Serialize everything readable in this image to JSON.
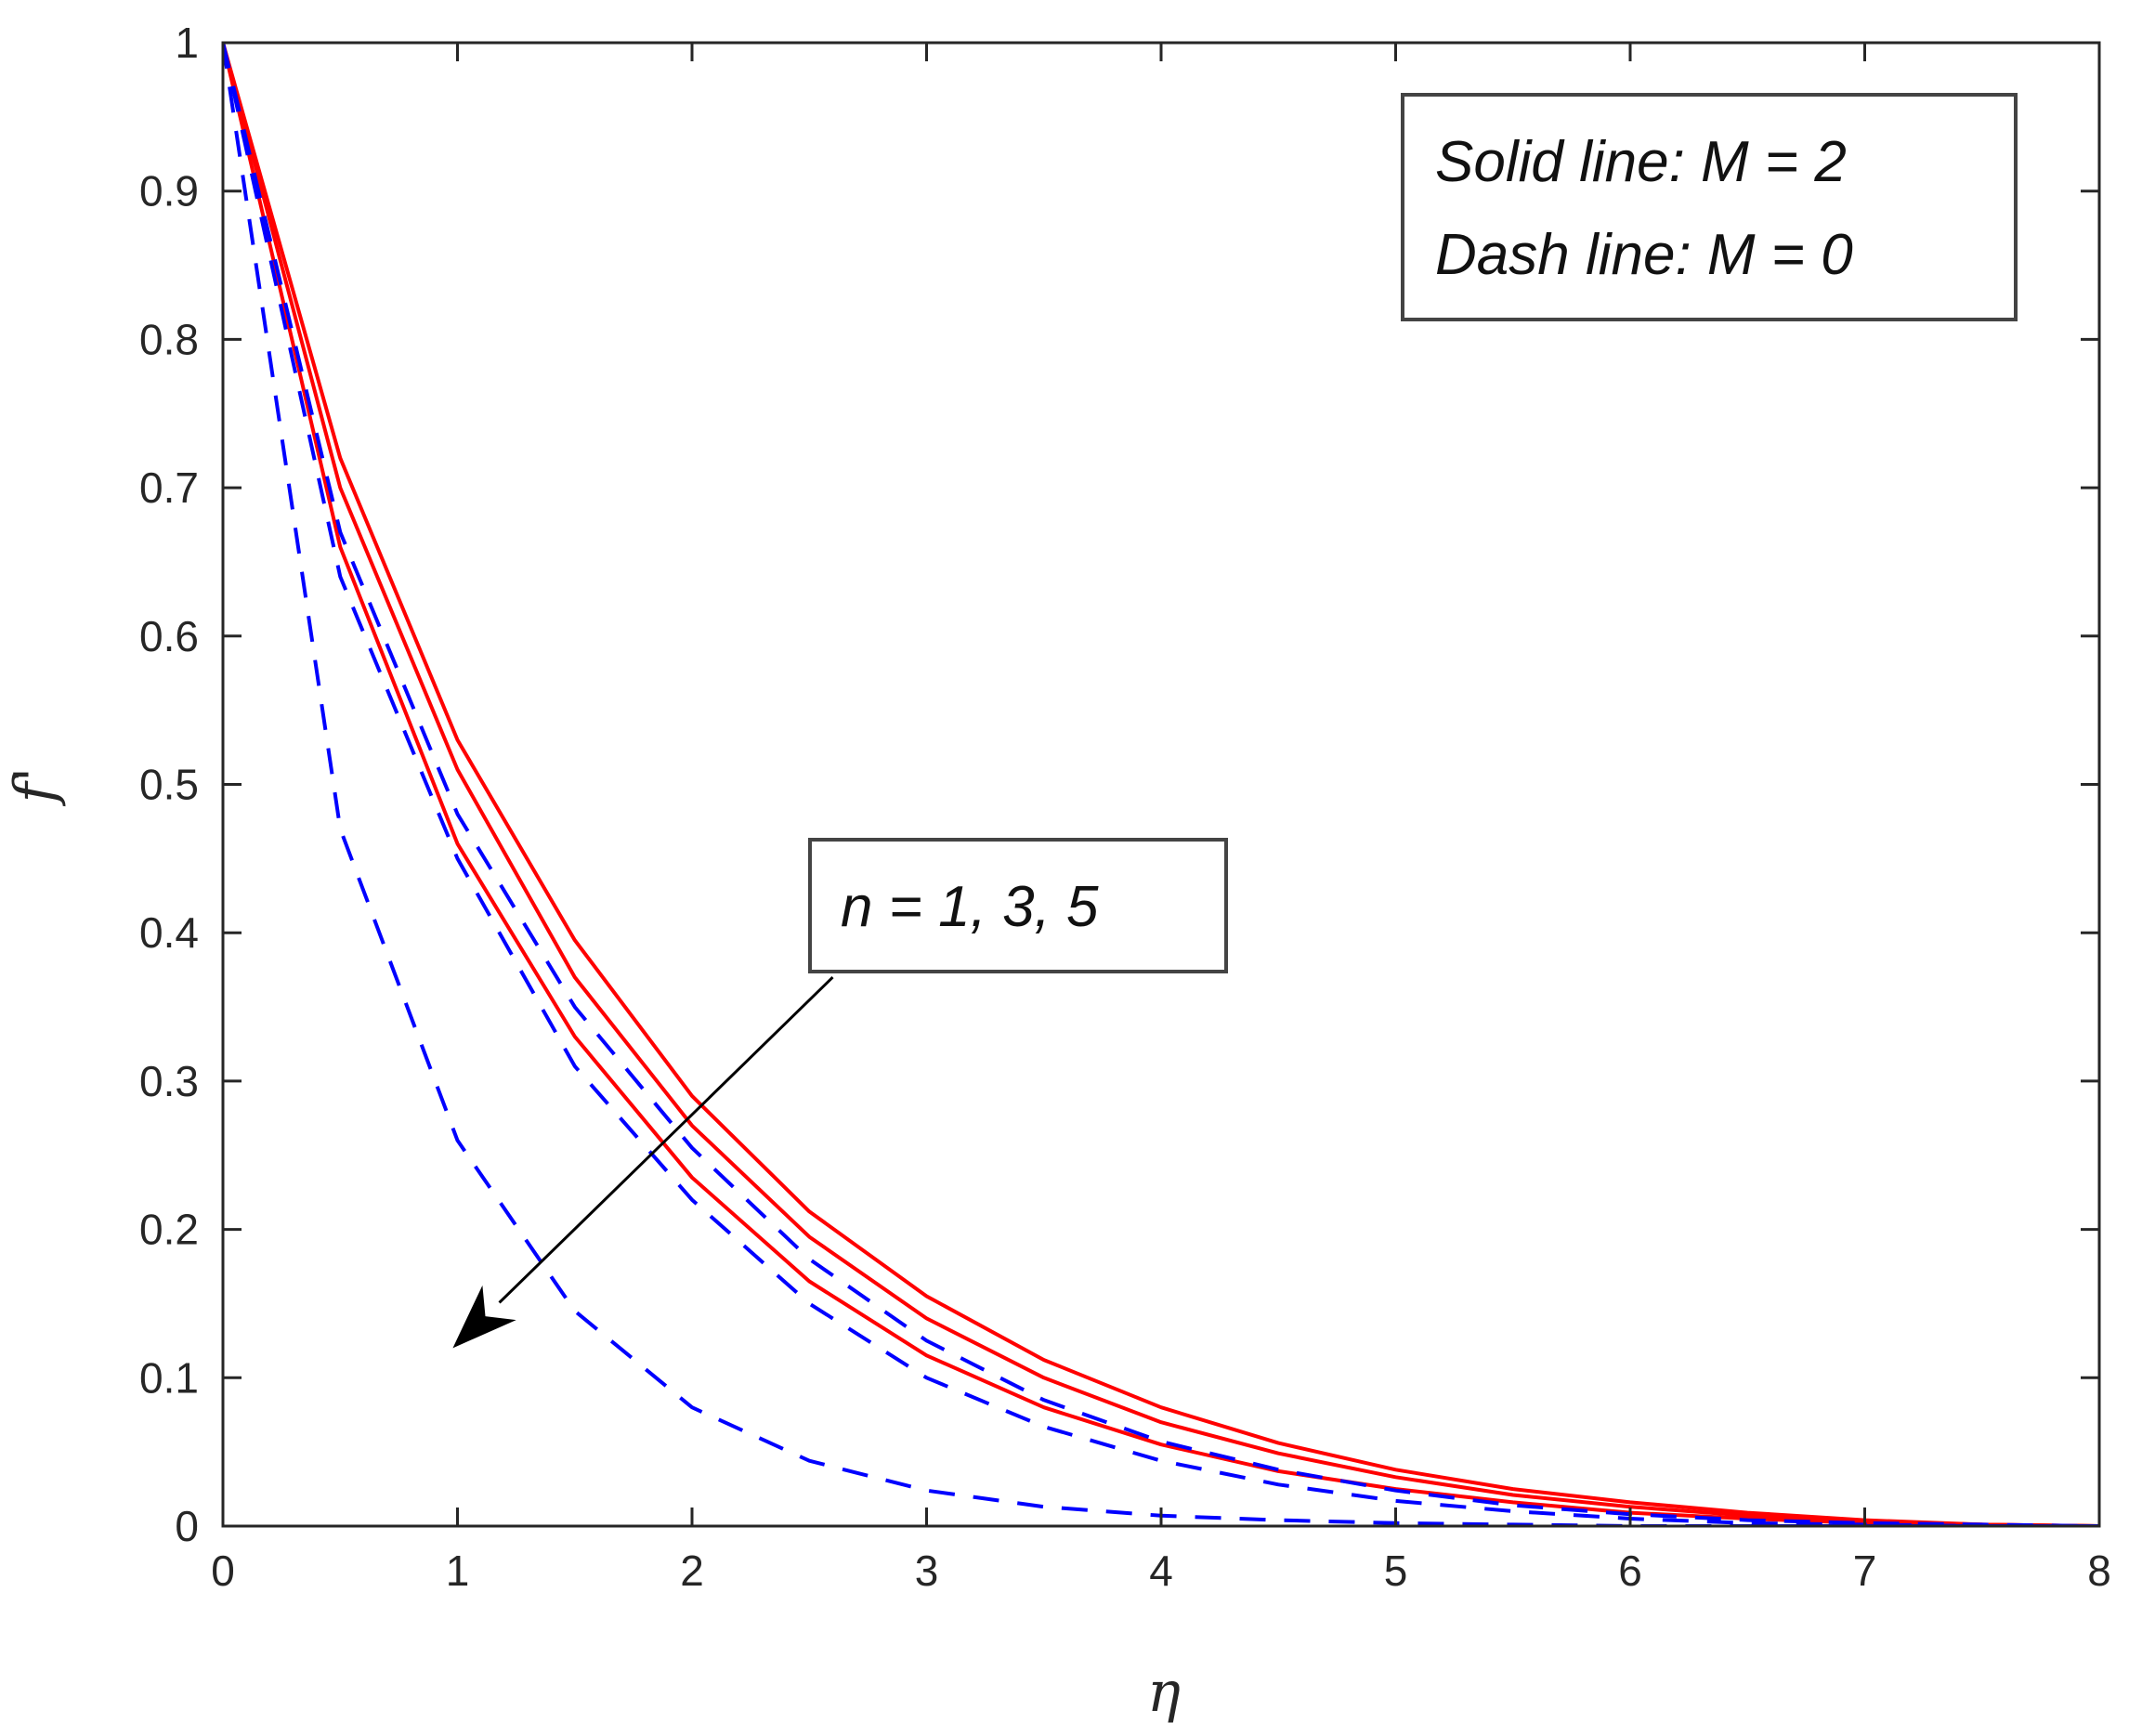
{
  "chart_data": {
    "type": "line",
    "title": "",
    "xlabel": "η",
    "ylabel": "f'",
    "xlim": [
      0,
      8
    ],
    "ylim": [
      0,
      1
    ],
    "xticks": [
      0,
      1,
      2,
      3,
      4,
      5,
      6,
      7,
      8
    ],
    "yticks": [
      0,
      0.1,
      0.2,
      0.3,
      0.4,
      0.5,
      0.6,
      0.7,
      0.8,
      0.9,
      1
    ],
    "grid": false,
    "x": [
      0,
      0.5,
      1,
      1.5,
      2,
      2.5,
      3,
      3.5,
      4,
      4.5,
      5,
      5.5,
      6,
      6.5,
      7,
      7.5,
      8
    ],
    "series": [
      {
        "style": "solid",
        "color": "#ff0000",
        "values": [
          1,
          0.72,
          0.53,
          0.395,
          0.29,
          0.212,
          0.155,
          0.112,
          0.08,
          0.056,
          0.038,
          0.025,
          0.016,
          0.009,
          0.004,
          0.001,
          0.0
        ]
      },
      {
        "style": "solid",
        "color": "#ff0000",
        "values": [
          1,
          0.7,
          0.51,
          0.37,
          0.27,
          0.195,
          0.14,
          0.1,
          0.07,
          0.049,
          0.033,
          0.021,
          0.013,
          0.007,
          0.003,
          0.001,
          0.0
        ]
      },
      {
        "style": "solid",
        "color": "#ff0000",
        "values": [
          1,
          0.66,
          0.46,
          0.33,
          0.235,
          0.165,
          0.115,
          0.08,
          0.055,
          0.037,
          0.025,
          0.016,
          0.009,
          0.005,
          0.002,
          0.001,
          0.0
        ]
      },
      {
        "style": "dashed",
        "color": "#0000ff",
        "values": [
          1,
          0.67,
          0.48,
          0.35,
          0.255,
          0.18,
          0.125,
          0.085,
          0.057,
          0.038,
          0.024,
          0.014,
          0.008,
          0.004,
          0.002,
          0.001,
          0.0
        ]
      },
      {
        "style": "dashed",
        "color": "#0000ff",
        "values": [
          1,
          0.64,
          0.45,
          0.31,
          0.22,
          0.15,
          0.1,
          0.067,
          0.044,
          0.028,
          0.017,
          0.01,
          0.005,
          0.002,
          0.001,
          0.0,
          0.0
        ]
      },
      {
        "style": "dashed",
        "color": "#0000ff",
        "values": [
          1,
          0.47,
          0.26,
          0.145,
          0.08,
          0.044,
          0.024,
          0.013,
          0.007,
          0.004,
          0.002,
          0.001,
          0.0,
          0.0,
          0.0,
          0.0,
          0.0
        ]
      }
    ],
    "annotations": {
      "legend_box": [
        "Solid line: M = 2",
        "Dash line: M = 0"
      ],
      "arrow_label": "n = 1, 3, 5",
      "arrow_from": [
        2.6,
        0.37
      ],
      "arrow_to": [
        0.98,
        0.12
      ]
    }
  }
}
